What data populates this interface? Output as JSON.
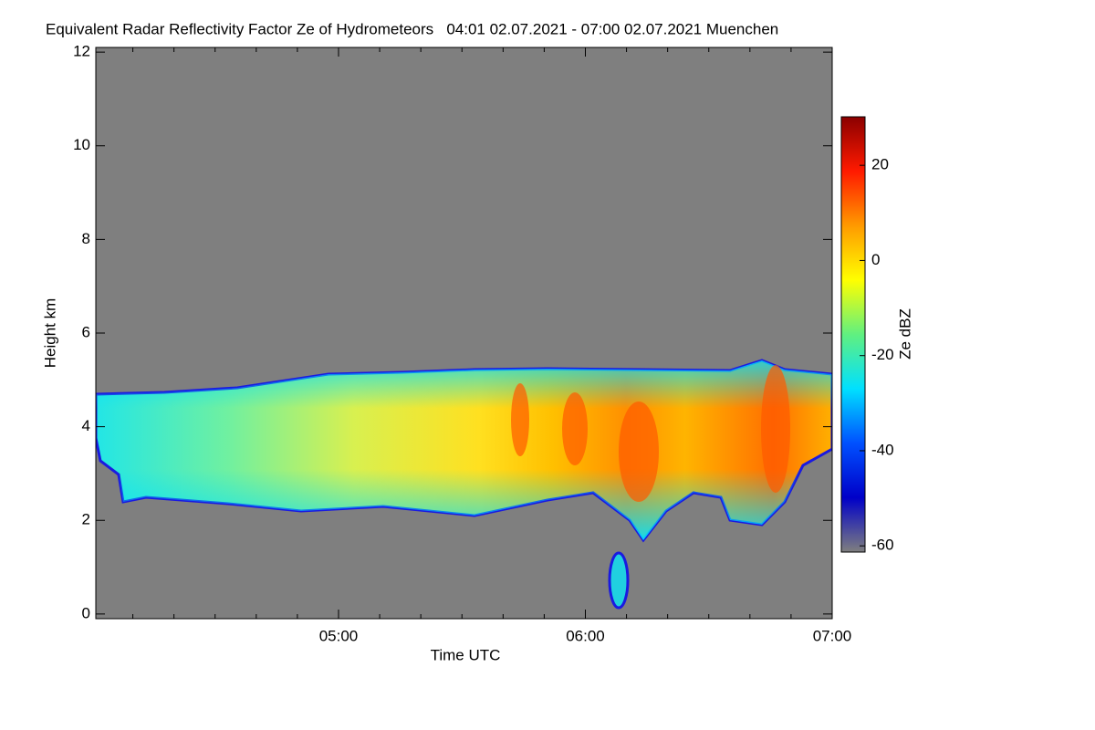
{
  "chart_data": {
    "type": "heatmap",
    "title": "Equivalent Radar Reflectivity Factor Ze of Hydrometeors   04:01 02.07.2021 - 07:00 02.07.2021 Muenchen",
    "x_label": "Time UTC",
    "y_label": "Height km",
    "colorbar_label": "Ze dBZ",
    "xlim": [
      4.0167,
      7.0
    ],
    "xticks": [
      {
        "value": 5,
        "label": "05:00"
      },
      {
        "value": 6,
        "label": "06:00"
      },
      {
        "value": 7,
        "label": "07:00"
      }
    ],
    "xminorticks": [
      4.1667,
      4.3333,
      4.5,
      4.6667,
      4.8333,
      5.1667,
      5.3333,
      5.5,
      5.6667,
      5.8333,
      6.1667,
      6.3333,
      6.5,
      6.6667,
      6.8333
    ],
    "ylim": [
      -0.1,
      12.1
    ],
    "yticks": [
      0,
      2,
      4,
      6,
      8,
      10,
      12
    ],
    "clim": [
      -61.3,
      30.2
    ],
    "cticks": [
      -60,
      -40,
      -20,
      0,
      20
    ],
    "colormap": [
      "#7f7f7f",
      "#0000c8",
      "#0050ff",
      "#00e0ff",
      "#60f080",
      "#ffff00",
      "#ff9a00",
      "#ff1a00",
      "#8b0000"
    ],
    "background_color": "#7f7f7f"
  }
}
